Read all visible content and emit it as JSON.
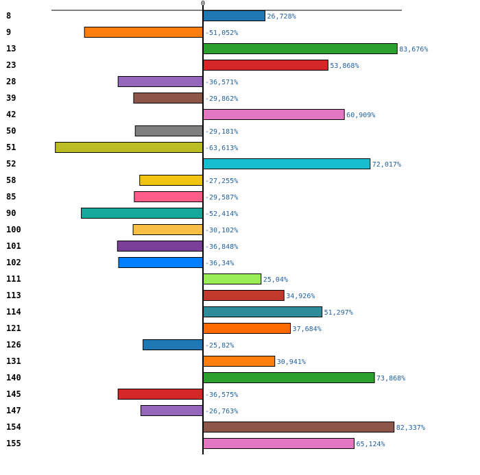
{
  "chart_data": {
    "type": "bar",
    "orientation": "horizontal",
    "title": "",
    "xlabel": "",
    "ylabel": "",
    "xlim": [
      -70,
      90
    ],
    "zero_tick_label": "0",
    "grid": false,
    "categories": [
      "8",
      "9",
      "13",
      "23",
      "28",
      "39",
      "42",
      "50",
      "51",
      "52",
      "58",
      "85",
      "90",
      "100",
      "101",
      "102",
      "111",
      "113",
      "114",
      "121",
      "126",
      "131",
      "140",
      "145",
      "147",
      "154",
      "155"
    ],
    "values": [
      26.728,
      -51.052,
      83.676,
      53.868,
      -36.571,
      -29.862,
      60.909,
      -29.181,
      -63.613,
      72.017,
      -27.255,
      -29.587,
      -52.414,
      -30.102,
      -36.848,
      -36.34,
      25.04,
      34.926,
      51.297,
      37.684,
      -25.82,
      30.941,
      73.868,
      -36.575,
      -26.763,
      82.337,
      65.124
    ],
    "value_labels": [
      "26,728%",
      "-51,052%",
      "83,676%",
      "53,868%",
      "-36,571%",
      "-29,862%",
      "60,909%",
      "-29,181%",
      "-63,613%",
      "72,017%",
      "-27,255%",
      "-29,587%",
      "-52,414%",
      "-30,102%",
      "-36,848%",
      "-36,34%",
      "25,04%",
      "34,926%",
      "51,297%",
      "37,684%",
      "-25,82%",
      "30,941%",
      "73,868%",
      "-36,575%",
      "-26,763%",
      "82,337%",
      "65,124%"
    ],
    "colors": [
      "#1f77b4",
      "#ff7f0e",
      "#2ca02c",
      "#d62728",
      "#9467bd",
      "#8c564b",
      "#e377c2",
      "#7f7f7f",
      "#bcbd22",
      "#17becf",
      "#f1c40f",
      "#ff5c8a",
      "#16a99b",
      "#f9bf45",
      "#7b3f98",
      "#0080ff",
      "#99ee55",
      "#c0392b",
      "#2e8b9a",
      "#ff6a00",
      "#1f77b4",
      "#ff7f0e",
      "#2ca02c",
      "#d62728",
      "#9467bd",
      "#8c564b",
      "#e377c2"
    ]
  }
}
